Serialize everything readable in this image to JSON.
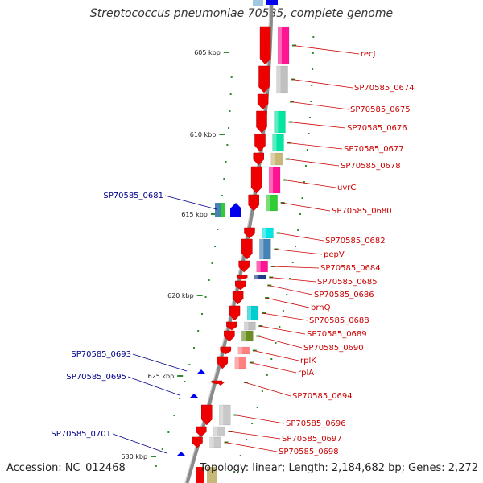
{
  "title": "Streptococcus pneumoniae 70585, complete genome",
  "footer": {
    "accession": "Accession: NC_012468",
    "summary": "Topology: linear; Length: 2,184,682 bp; Genes: 2,272"
  },
  "colors": {
    "forward_label": "#cc0000",
    "reverse_label": "#00008b",
    "backbone": "#8a8a8a",
    "tick": "#2e8b2e"
  },
  "kbp_ticks": [
    {
      "text": "605 kbp",
      "pos": 605
    },
    {
      "text": "610 kbp",
      "pos": 610
    },
    {
      "text": "615 kbp",
      "pos": 615
    },
    {
      "text": "620 kbp",
      "pos": 620
    },
    {
      "text": "625 kbp",
      "pos": 625
    },
    {
      "text": "630 kbp",
      "pos": 630
    }
  ],
  "forward_genes": [
    {
      "label": "recJ",
      "color": "#ff1493"
    },
    {
      "label": "SP70585_0674",
      "color": "#c0c0c0"
    },
    {
      "label": "SP70585_0675",
      "color": "#ffffff"
    },
    {
      "label": "SP70585_0676",
      "color": "#00e5a0"
    },
    {
      "label": "SP70585_0677",
      "color": "#00e5a0"
    },
    {
      "label": "SP70585_0678",
      "color": "#c8b878"
    },
    {
      "label": "uvrC",
      "color": "#ff1493"
    },
    {
      "label": "SP70585_0680",
      "color": "#32cd32"
    },
    {
      "label": "SP70585_0682",
      "color": "#00e5e5"
    },
    {
      "label": "pepV",
      "color": "#4682b4"
    },
    {
      "label": "SP70585_0684",
      "color": "#ff1493"
    },
    {
      "label": "SP70585_0685",
      "color": "#1e3a8a"
    },
    {
      "label": "SP70585_0686",
      "color": "#ffffff"
    },
    {
      "label": "brnQ",
      "color": "#ffffff"
    },
    {
      "label": "SP70585_0688",
      "color": "#00ced1"
    },
    {
      "label": "SP70585_0689",
      "color": "#c0c0c0"
    },
    {
      "label": "SP70585_0690",
      "color": "#6b8e23"
    },
    {
      "label": "rplK",
      "color": "#ff8080"
    },
    {
      "label": "rplA",
      "color": "#ff8080"
    },
    {
      "label": "SP70585_0694",
      "color": "#ffffff"
    },
    {
      "label": "SP70585_0696",
      "color": "#c8c8c8"
    },
    {
      "label": "SP70585_0697",
      "color": "#c8c8c8"
    },
    {
      "label": "SP70585_0698",
      "color": "#c8c8c8"
    }
  ],
  "reverse_genes": [
    {
      "label": "SP70585_0681"
    },
    {
      "label": "SP70585_0693"
    },
    {
      "label": "SP70585_0695"
    },
    {
      "label": "SP70585_0701"
    }
  ]
}
